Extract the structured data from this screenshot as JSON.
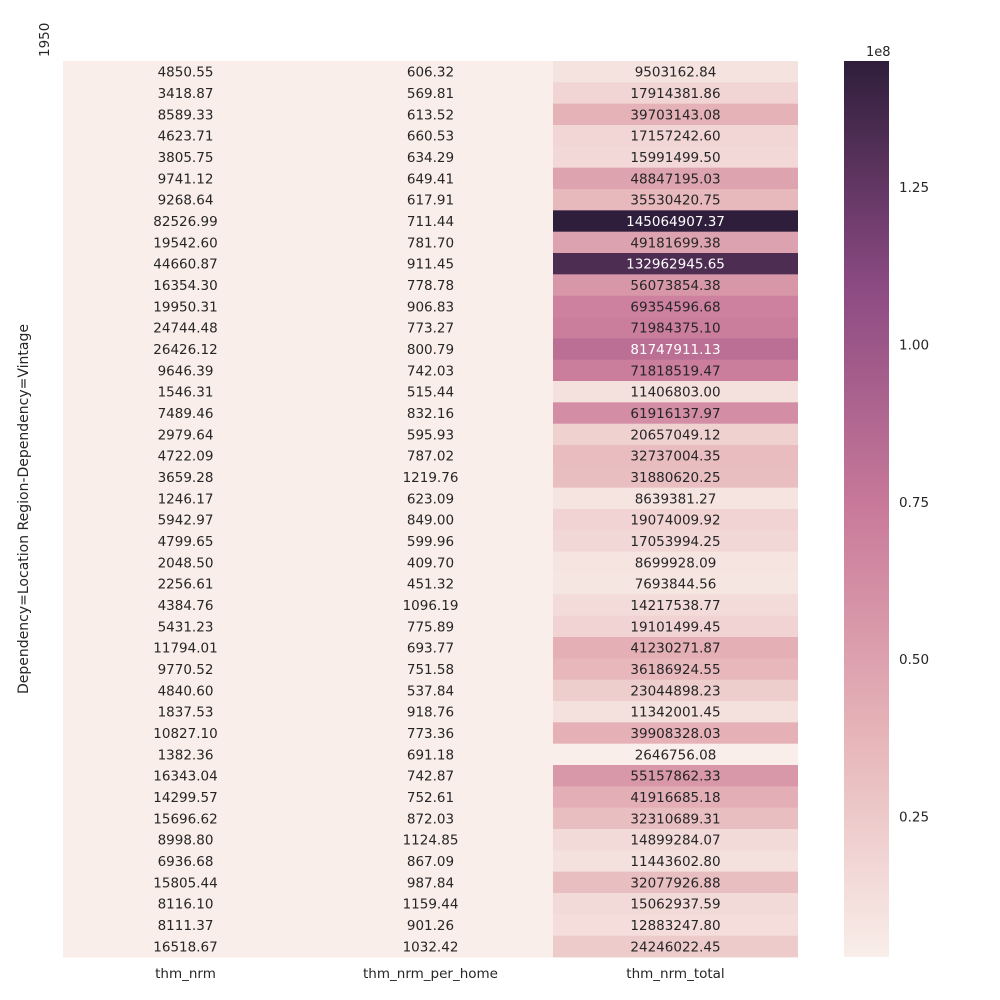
{
  "chart_data": {
    "type": "heatmap",
    "ylabel": "Dependency=Location Region-Dependency=Vintage",
    "columns": [
      "thm_nrm",
      "thm_nrm_per_home",
      "thm_nrm_total"
    ],
    "y_tick_labels": [
      "1950"
    ],
    "rows": [
      [
        4850.55,
        606.32,
        9503162.84
      ],
      [
        3418.87,
        569.81,
        17914381.86
      ],
      [
        8589.33,
        613.52,
        39703143.08
      ],
      [
        4623.71,
        660.53,
        17157242.6
      ],
      [
        3805.75,
        634.29,
        15991499.5
      ],
      [
        9741.12,
        649.41,
        48847195.03
      ],
      [
        9268.64,
        617.91,
        35530420.75
      ],
      [
        82526.99,
        711.44,
        145064907.37
      ],
      [
        19542.6,
        781.7,
        49181699.38
      ],
      [
        44660.87,
        911.45,
        132962945.65
      ],
      [
        16354.3,
        778.78,
        56073854.38
      ],
      [
        19950.31,
        906.83,
        69354596.68
      ],
      [
        24744.48,
        773.27,
        71984375.1
      ],
      [
        26426.12,
        800.79,
        81747911.13
      ],
      [
        9646.39,
        742.03,
        71818519.47
      ],
      [
        1546.31,
        515.44,
        11406803.0
      ],
      [
        7489.46,
        832.16,
        61916137.97
      ],
      [
        2979.64,
        595.93,
        20657049.12
      ],
      [
        4722.09,
        787.02,
        32737004.35
      ],
      [
        3659.28,
        1219.76,
        31880620.25
      ],
      [
        1246.17,
        623.09,
        8639381.27
      ],
      [
        5942.97,
        849.0,
        19074009.92
      ],
      [
        4799.65,
        599.96,
        17053994.25
      ],
      [
        2048.5,
        409.7,
        8699928.09
      ],
      [
        2256.61,
        451.32,
        7693844.56
      ],
      [
        4384.76,
        1096.19,
        14217538.77
      ],
      [
        5431.23,
        775.89,
        19101499.45
      ],
      [
        11794.01,
        693.77,
        41230271.87
      ],
      [
        9770.52,
        751.58,
        36186924.55
      ],
      [
        4840.6,
        537.84,
        23044898.23
      ],
      [
        1837.53,
        918.76,
        11342001.45
      ],
      [
        10827.1,
        773.36,
        39908328.03
      ],
      [
        1382.36,
        691.18,
        2646756.08
      ],
      [
        16343.04,
        742.87,
        55157862.33
      ],
      [
        14299.57,
        752.61,
        41916685.18
      ],
      [
        15696.62,
        872.03,
        32310689.31
      ],
      [
        8998.8,
        1124.85,
        14899284.07
      ],
      [
        6936.68,
        867.09,
        11443602.8
      ],
      [
        15805.44,
        987.84,
        32077926.88
      ],
      [
        8116.1,
        1159.44,
        15062937.59
      ],
      [
        8111.37,
        901.26,
        12883247.8
      ],
      [
        16518.67,
        1032.42,
        24246022.45
      ]
    ],
    "colorbar": {
      "ticks": [
        0.25,
        0.5,
        0.75,
        1.0,
        1.25
      ],
      "tick_labels": [
        "0.25",
        "0.50",
        "0.75",
        "1.00",
        "1.25"
      ],
      "offset_label": "1e8",
      "range": [
        2646756.08,
        145064907.37
      ]
    },
    "colormap": {
      "low": "#f9eee9",
      "mid": "#c97a9a",
      "high": "#2e1e3b"
    },
    "grid": false,
    "legend": "colorbar-right"
  }
}
